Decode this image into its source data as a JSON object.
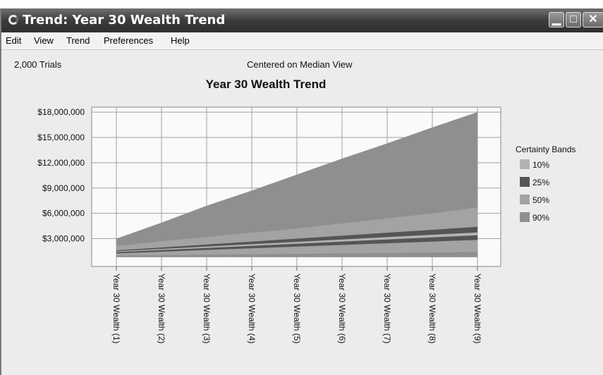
{
  "window": {
    "title": "Trend: Year 30 Wealth Trend",
    "controls": [
      "minimize",
      "maximize",
      "close"
    ]
  },
  "menu": [
    "Edit",
    "View",
    "Trend",
    "Preferences",
    "Help"
  ],
  "info": {
    "trials": "2,000 Trials",
    "view": "Centered on Median View"
  },
  "colors": {
    "band10": "#b3b3b3",
    "band25": "#555555",
    "band50": "#a3a3a3",
    "band90": "#8f8f8f",
    "plotBg": "#fafafa",
    "grid": "#a0a0a0"
  },
  "chart_data": {
    "type": "area",
    "title": "Year 30 Wealth Trend",
    "xlabel": "",
    "ylabel": "",
    "categories": [
      "Year 30 Wealth (1)",
      "Year 30 Wealth (2)",
      "Year 30 Wealth (3)",
      "Year 30 Wealth (4)",
      "Year 30 Wealth (5)",
      "Year 30 Wealth (6)",
      "Year 30 Wealth (7)",
      "Year 30 Wealth (8)",
      "Year 30 Wealth (9)"
    ],
    "ylim": [
      -300000,
      18600000
    ],
    "yticks": [
      3000000,
      6000000,
      9000000,
      12000000,
      15000000,
      18000000
    ],
    "ytick_labels": [
      "$3,000,000",
      "$6,000,000",
      "$9,000,000",
      "$12,000,000",
      "$15,000,000",
      "$18,000,000"
    ],
    "grid": true,
    "legend": {
      "title": "Certainty Bands",
      "position": "right"
    },
    "series": [
      {
        "name": "90%",
        "lower": [
          800000,
          800000,
          800000,
          800000,
          800000,
          800000,
          800000,
          800000,
          800000
        ],
        "upper": [
          3000000,
          4900000,
          6900000,
          8700000,
          10600000,
          12500000,
          14300000,
          16200000,
          18000000
        ]
      },
      {
        "name": "50%",
        "lower": [
          1000000,
          1050000,
          1100000,
          1150000,
          1200000,
          1250000,
          1300000,
          1350000,
          1400000
        ],
        "upper": [
          2100000,
          2700000,
          3200000,
          3700000,
          4200000,
          4800000,
          5400000,
          6000000,
          6700000
        ]
      },
      {
        "name": "25%",
        "lower": [
          1250000,
          1450000,
          1650000,
          1850000,
          2050000,
          2250000,
          2450000,
          2650000,
          2850000
        ],
        "upper": [
          1600000,
          1950000,
          2300000,
          2650000,
          3000000,
          3350000,
          3700000,
          4050000,
          4400000
        ]
      },
      {
        "name": "10%",
        "lower": [
          1400000,
          1650000,
          1900000,
          2150000,
          2400000,
          2650000,
          2900000,
          3150000,
          3400000
        ],
        "upper": [
          1500000,
          1780000,
          2060000,
          2340000,
          2620000,
          2900000,
          3180000,
          3460000,
          3740000
        ]
      }
    ]
  }
}
